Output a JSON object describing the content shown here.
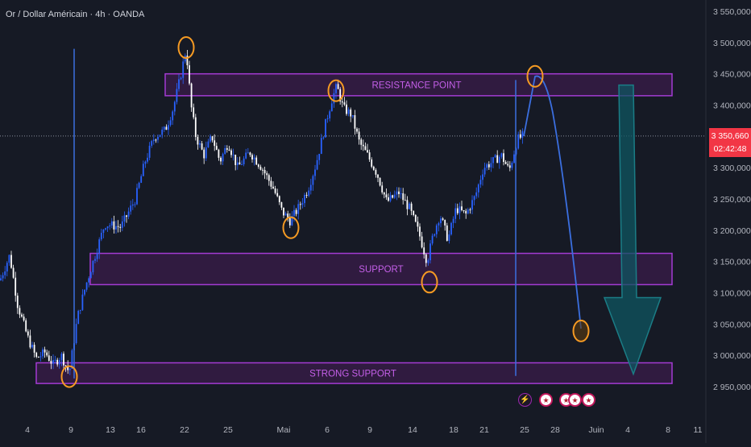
{
  "title": "Or / Dollar Américain · 4h · OANDA",
  "current_price": "3 350,660",
  "countdown": "02:42:48",
  "zones": {
    "resistance": "RESISTANCE POINT",
    "support": "SUPPORT",
    "strong_support": "STRONG SUPPORT"
  },
  "colors": {
    "background": "#161a25",
    "candle_up": "#2962ff",
    "candle_down": "#ffffff",
    "zone_border": "#a33bd3",
    "zone_fill": "#3a1c4a",
    "zone_text": "#c45fe8",
    "marker_ring": "#f59a23",
    "projection_line": "#3b6fe0",
    "arrow": "#0f5560",
    "price_tag": "#f23645"
  },
  "icons": [
    "lightning-icon",
    "us-flag-icon",
    "us-flag-icon",
    "us-flag-icon",
    "us-flag-icon"
  ],
  "chart_data": {
    "type": "candlestick",
    "title": "Or / Dollar Américain · 4h · OANDA",
    "x_ticks": [
      "4",
      "9",
      "13",
      "16",
      "22",
      "25",
      "Mai",
      "6",
      "9",
      "14",
      "18",
      "21",
      "25",
      "28",
      "Juin",
      "4",
      "8",
      "11"
    ],
    "y_ticks": [
      3550,
      3500,
      3450,
      3400,
      3350,
      3300,
      3250,
      3200,
      3150,
      3100,
      3050,
      3000,
      2950
    ],
    "y_tick_labels": [
      "3 550,000",
      "3 500,000",
      "3 450,000",
      "3 400,000",
      "3 350,000",
      "3 300,000",
      "3 250,000",
      "3 200,000",
      "3 150,000",
      "3 100,000",
      "3 050,000",
      "3 000,000",
      "2 950,000"
    ],
    "ylim": [
      2925,
      3570
    ],
    "last_price": 3350.66,
    "price_path": [
      [
        0,
        3120
      ],
      [
        12,
        3160
      ],
      [
        22,
        3080
      ],
      [
        34,
        3030
      ],
      [
        45,
        2995
      ],
      [
        56,
        3005
      ],
      [
        66,
        2985
      ],
      [
        76,
        3000
      ],
      [
        86,
        2972
      ],
      [
        96,
        3060
      ],
      [
        106,
        3110
      ],
      [
        118,
        3160
      ],
      [
        130,
        3210
      ],
      [
        150,
        3205
      ],
      [
        168,
        3250
      ],
      [
        180,
        3310
      ],
      [
        192,
        3350
      ],
      [
        205,
        3360
      ],
      [
        215,
        3395
      ],
      [
        223,
        3440
      ],
      [
        231,
        3490
      ],
      [
        237,
        3400
      ],
      [
        243,
        3350
      ],
      [
        253,
        3320
      ],
      [
        263,
        3350
      ],
      [
        273,
        3310
      ],
      [
        283,
        3340
      ],
      [
        295,
        3300
      ],
      [
        310,
        3325
      ],
      [
        325,
        3300
      ],
      [
        340,
        3265
      ],
      [
        350,
        3230
      ],
      [
        360,
        3215
      ],
      [
        370,
        3235
      ],
      [
        382,
        3265
      ],
      [
        392,
        3305
      ],
      [
        404,
        3370
      ],
      [
        412,
        3410
      ],
      [
        418,
        3430
      ],
      [
        426,
        3395
      ],
      [
        436,
        3385
      ],
      [
        446,
        3340
      ],
      [
        456,
        3320
      ],
      [
        468,
        3290
      ],
      [
        480,
        3245
      ],
      [
        495,
        3260
      ],
      [
        508,
        3235
      ],
      [
        520,
        3195
      ],
      [
        530,
        3150
      ],
      [
        538,
        3195
      ],
      [
        546,
        3225
      ],
      [
        556,
        3185
      ],
      [
        566,
        3235
      ],
      [
        578,
        3225
      ],
      [
        590,
        3255
      ],
      [
        600,
        3300
      ],
      [
        612,
        3310
      ],
      [
        622,
        3320
      ],
      [
        632,
        3295
      ],
      [
        642,
        3345
      ],
      [
        650,
        3352
      ]
    ],
    "zones": [
      {
        "label": "RESISTANCE POINT",
        "y_low": 3415,
        "y_high": 3450,
        "x_from": 205,
        "x_to": 834
      },
      {
        "label": "SUPPORT",
        "y_low": 3113,
        "y_high": 3163,
        "x_from": 112,
        "x_to": 834
      },
      {
        "label": "STRONG SUPPORT",
        "y_low": 2955,
        "y_high": 2988,
        "x_from": 45,
        "x_to": 834
      }
    ],
    "markers": [
      {
        "x": 86,
        "y": 2966
      },
      {
        "x": 231,
        "y": 3492
      },
      {
        "x": 361,
        "y": 3204
      },
      {
        "x": 417,
        "y": 3423
      },
      {
        "x": 533,
        "y": 3117
      },
      {
        "x": 664,
        "y": 3446
      },
      {
        "x": 721,
        "y": 3039
      }
    ],
    "vertical_lines": [
      {
        "x": 92,
        "y_from": 2963,
        "y_to": 3490
      },
      {
        "x": 640,
        "y_from": 2967,
        "y_to": 3440
      }
    ],
    "projection": [
      [
        650,
        3352
      ],
      [
        664,
        3446
      ],
      [
        680,
        3420
      ],
      [
        700,
        3250
      ],
      [
        721,
        3039
      ]
    ],
    "arrow": {
      "x": 786,
      "y_from": 3432,
      "y_to": 2970
    }
  }
}
